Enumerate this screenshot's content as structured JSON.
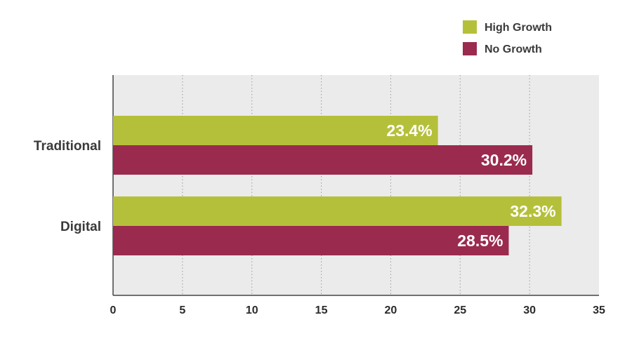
{
  "chart_data": {
    "type": "bar",
    "orientation": "horizontal",
    "categories": [
      "Traditional",
      "Digital"
    ],
    "series": [
      {
        "name": "High Growth",
        "values": [
          23.4,
          32.3
        ],
        "labels": [
          "23.4%",
          "32.3%"
        ],
        "color": "#b5c03a"
      },
      {
        "name": "No Growth",
        "values": [
          30.2,
          28.5
        ],
        "labels": [
          "30.2%",
          "28.5%"
        ],
        "color": "#9b2a4f"
      }
    ],
    "xlim": [
      0,
      35
    ],
    "xticks": [
      "0",
      "5",
      "10",
      "15",
      "20",
      "25",
      "30",
      "35"
    ],
    "grid": "vertical-dotted",
    "legend_position": "top-right",
    "plot_background": "#ebebeb"
  }
}
